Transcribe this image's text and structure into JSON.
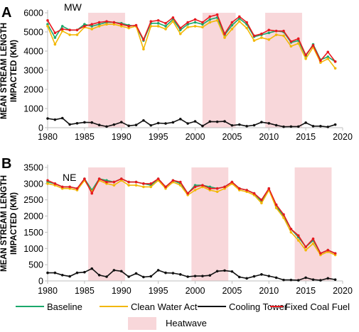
{
  "legend": {
    "baseline": "Baseline",
    "clean_water_act": "Clean Water Act",
    "cooling_tower": "Cooling Tower",
    "fixed_coal_fuel": "Fixed Coal Fuel",
    "heatwave": "Heatwave"
  },
  "colors": {
    "baseline": "#1aa86b",
    "clean_water_act": "#f2b705",
    "cooling_tower": "#111111",
    "fixed_coal_fuel": "#e8191f",
    "heatwave": "#f8d7da"
  },
  "chart_data": [
    {
      "type": "line",
      "panel": "A",
      "title": "MW",
      "ylabel_line1": "MEAN STREAM LENGTH",
      "ylabel_line2": "IMPACTED (KM)",
      "xlim": [
        1980,
        2020
      ],
      "ylim": [
        0,
        6000
      ],
      "x_ticks": [
        1980,
        1985,
        1990,
        1995,
        2000,
        2005,
        2010,
        2015,
        2020
      ],
      "y_ticks": [
        0,
        1000,
        2000,
        3000,
        4000,
        5000,
        6000
      ],
      "heatwave_periods": [
        [
          1985.5,
          1990.5
        ],
        [
          2001,
          2005.5
        ],
        [
          2009.5,
          2014.5
        ]
      ],
      "x": [
        1980,
        1981,
        1982,
        1983,
        1984,
        1985,
        1986,
        1987,
        1988,
        1989,
        1990,
        1991,
        1992,
        1993,
        1994,
        1995,
        1996,
        1997,
        1998,
        1999,
        2000,
        2001,
        2002,
        2003,
        2004,
        2005,
        2006,
        2007,
        2008,
        2009,
        2010,
        2011,
        2012,
        2013,
        2014,
        2015,
        2016,
        2017,
        2018,
        2019
      ],
      "series": [
        {
          "name": "Baseline",
          "values": [
            5400,
            4700,
            5300,
            5100,
            5100,
            5400,
            5300,
            5400,
            5500,
            5500,
            5450,
            5350,
            5300,
            4550,
            5450,
            5450,
            5300,
            5650,
            5100,
            5400,
            5500,
            5400,
            5650,
            5750,
            4850,
            5350,
            5700,
            5400,
            4750,
            4850,
            4950,
            5050,
            5000,
            4450,
            4550,
            3750,
            4350,
            3550,
            3700,
            3450
          ]
        },
        {
          "name": "Clean Water Act",
          "values": [
            5300,
            4350,
            5050,
            4850,
            4850,
            5250,
            5150,
            5300,
            5400,
            5400,
            5300,
            5200,
            5300,
            4100,
            5300,
            5300,
            5150,
            5550,
            4900,
            5250,
            5300,
            5250,
            5500,
            5600,
            4700,
            5150,
            5550,
            5200,
            4550,
            4700,
            4600,
            4850,
            4800,
            4250,
            4400,
            3600,
            4200,
            3400,
            3600,
            3100
          ]
        },
        {
          "name": "Cooling Tower",
          "values": [
            480,
            420,
            500,
            170,
            230,
            280,
            270,
            140,
            60,
            160,
            290,
            100,
            140,
            380,
            120,
            240,
            220,
            280,
            450,
            220,
            330,
            90,
            320,
            310,
            330,
            120,
            160,
            80,
            130,
            290,
            230,
            130,
            50,
            60,
            60,
            260,
            80,
            80,
            40,
            160
          ]
        },
        {
          "name": "Fixed Coal Fuel",
          "values": [
            5600,
            4950,
            5150,
            5100,
            5100,
            5300,
            5400,
            5500,
            5550,
            5500,
            5400,
            5300,
            5350,
            4600,
            5550,
            5600,
            5450,
            5750,
            5200,
            5500,
            5650,
            5500,
            5800,
            5900,
            4900,
            5500,
            5800,
            5500,
            4800,
            4900,
            5100,
            5050,
            5050,
            4500,
            4650,
            3800,
            4300,
            3500,
            3950,
            3450
          ]
        }
      ]
    },
    {
      "type": "line",
      "panel": "B",
      "title": "NE",
      "ylabel_line1": "MEAN STREAM LENGTH",
      "ylabel_line2": "IMPACTED (KM)",
      "xlim": [
        1980,
        2020
      ],
      "ylim": [
        0,
        3500
      ],
      "x_ticks": [
        1980,
        1985,
        1990,
        1995,
        2000,
        2005,
        2010,
        2015,
        2020
      ],
      "y_ticks": [
        0,
        500,
        1000,
        1500,
        2000,
        2500,
        3000,
        3500
      ],
      "heatwave_periods": [
        [
          1985.5,
          1990.5
        ],
        [
          1999.5,
          2004.5
        ],
        [
          2013.5,
          2018.5
        ]
      ],
      "x": [
        1980,
        1981,
        1982,
        1983,
        1984,
        1985,
        1986,
        1987,
        1988,
        1989,
        1990,
        1991,
        1992,
        1993,
        1994,
        1995,
        1996,
        1997,
        1998,
        1999,
        2000,
        2001,
        2002,
        2003,
        2004,
        2005,
        2006,
        2007,
        2008,
        2009,
        2010,
        2011,
        2012,
        2013,
        2014,
        2015,
        2016,
        2017,
        2018,
        2019
      ],
      "series": [
        {
          "name": "Baseline",
          "values": [
            3050,
            3000,
            2900,
            2900,
            2850,
            3150,
            2800,
            3150,
            3100,
            3050,
            3150,
            3050,
            3050,
            3000,
            2950,
            3150,
            2900,
            3100,
            3000,
            2700,
            2950,
            2950,
            2900,
            2850,
            2900,
            3050,
            2850,
            2800,
            2700,
            2450,
            2850,
            2300,
            2000,
            1600,
            1350,
            1050,
            1250,
            850,
            950,
            850
          ]
        },
        {
          "name": "Clean Water Act",
          "values": [
            3000,
            2950,
            2850,
            2850,
            2800,
            3100,
            2750,
            3100,
            3000,
            2950,
            3100,
            2950,
            2950,
            2900,
            2900,
            3100,
            2850,
            3050,
            2950,
            2650,
            2800,
            2900,
            2800,
            2750,
            2850,
            3000,
            2800,
            2750,
            2650,
            2400,
            2800,
            2250,
            1950,
            1500,
            1250,
            950,
            1150,
            800,
            900,
            800
          ]
        },
        {
          "name": "Cooling Tower",
          "values": [
            250,
            250,
            180,
            140,
            250,
            270,
            380,
            180,
            130,
            330,
            300,
            130,
            230,
            120,
            140,
            330,
            250,
            240,
            200,
            130,
            150,
            150,
            170,
            300,
            320,
            290,
            120,
            80,
            140,
            200,
            150,
            100,
            30,
            30,
            20,
            100,
            40,
            20,
            80,
            40
          ]
        },
        {
          "name": "Fixed Coal Fuel",
          "values": [
            3100,
            3000,
            2900,
            2900,
            2850,
            3150,
            2700,
            3150,
            3050,
            3050,
            3150,
            3050,
            3050,
            3000,
            3000,
            3150,
            2900,
            3100,
            3050,
            2700,
            2900,
            2950,
            2850,
            2850,
            2900,
            3050,
            2850,
            2800,
            2700,
            2500,
            2850,
            2350,
            2050,
            1600,
            1400,
            1050,
            1300,
            850,
            950,
            850
          ]
        }
      ]
    }
  ]
}
